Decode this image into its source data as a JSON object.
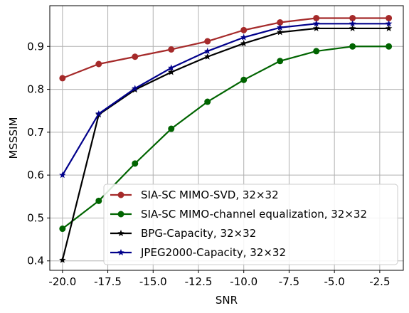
{
  "chart_data": {
    "type": "line",
    "title": "",
    "xlabel": "SNR",
    "ylabel": "MSSSIM",
    "xlim": [
      -20.7,
      -1.2
    ],
    "ylim": [
      0.378,
      0.995
    ],
    "grid": true,
    "legend_position": "lower-right",
    "x_ticks": [
      "-20.0",
      "-17.5",
      "-15.0",
      "-12.5",
      "-10.0",
      "-7.5",
      "-5.0",
      "-2.5"
    ],
    "x_tick_values": [
      -20,
      -17.5,
      -15,
      -12.5,
      -10,
      -7.5,
      -5,
      -2.5
    ],
    "y_ticks": [
      "0.4",
      "0.5",
      "0.6",
      "0.7",
      "0.8",
      "0.9"
    ],
    "y_tick_values": [
      0.4,
      0.5,
      0.6,
      0.7,
      0.8,
      0.9
    ],
    "x": [
      -20,
      -18,
      -16,
      -14,
      -12,
      -10,
      -8,
      -6,
      -4,
      -2
    ],
    "series": [
      {
        "name": "SIA-SC MIMO-SVD, 32×32",
        "color": "#a52a2a",
        "marker": "circle",
        "values": [
          0.826,
          0.859,
          0.876,
          0.893,
          0.912,
          0.938,
          0.956,
          0.966,
          0.966,
          0.966
        ]
      },
      {
        "name": "SIA-SC MIMO-channel equalization, 32×32",
        "color": "#006400",
        "marker": "circle",
        "values": [
          0.475,
          0.54,
          0.627,
          0.708,
          0.771,
          0.822,
          0.866,
          0.889,
          0.9,
          0.9
        ]
      },
      {
        "name": "BPG-Capacity, 32×32",
        "color": "#000000",
        "marker": "star",
        "values": [
          0.402,
          0.741,
          0.799,
          0.84,
          0.876,
          0.907,
          0.933,
          0.942,
          0.942,
          0.942
        ]
      },
      {
        "name": "JPEG2000-Capacity, 32×32",
        "color": "#00008b",
        "marker": "star",
        "values": [
          0.6,
          0.743,
          0.802,
          0.85,
          0.889,
          0.921,
          0.944,
          0.953,
          0.953,
          0.953
        ]
      }
    ]
  }
}
